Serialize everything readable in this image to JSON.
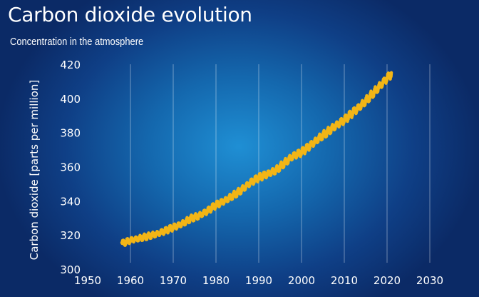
{
  "chart_data": {
    "type": "line",
    "title": "Carbon dioxide evolution",
    "subtitle": "Concentration in the atmosphere",
    "xlabel": "",
    "ylabel": "Carbon dioxide [parts per million]",
    "xlim": [
      1950,
      2030
    ],
    "ylim": [
      300,
      420
    ],
    "xticks": [
      "1950",
      "1960",
      "1970",
      "1980",
      "1990",
      "2000",
      "2010",
      "2020",
      "2030"
    ],
    "yticks": [
      "300",
      "320",
      "340",
      "360",
      "380",
      "400",
      "420"
    ],
    "grid": "vertical",
    "line_color": "#f2b516",
    "series": [
      {
        "x": [
          1958,
          1960,
          1962,
          1964,
          1966,
          1968,
          1970,
          1972,
          1974,
          1976,
          1978,
          1980,
          1982,
          1984,
          1986,
          1988,
          1990,
          1992,
          1994,
          1996,
          1998,
          2000,
          2002,
          2004,
          2006,
          2008,
          2010,
          2012,
          2014,
          2016,
          2018,
          2020,
          2021
        ],
        "y": [
          315.0,
          316.9,
          318.0,
          319.2,
          320.5,
          322.3,
          324.5,
          326.4,
          329.5,
          331.2,
          334.1,
          337.6,
          340.0,
          343.1,
          346.4,
          350.6,
          353.7,
          355.6,
          357.9,
          362.1,
          366.2,
          368.5,
          372.3,
          376.5,
          380.2,
          384.0,
          387.4,
          391.7,
          396.0,
          401.1,
          406.4,
          411.8,
          414.5
        ]
      }
    ]
  }
}
